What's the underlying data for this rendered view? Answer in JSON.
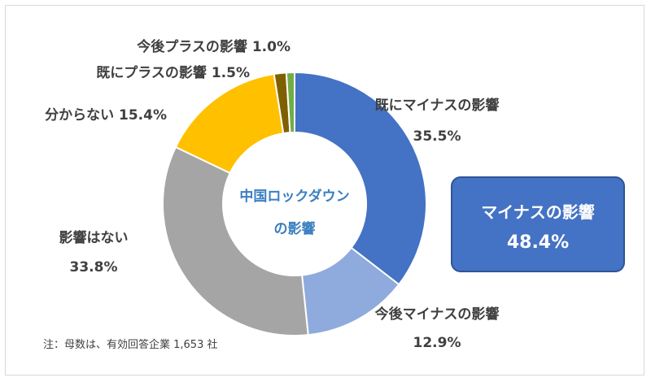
{
  "chart_data": {
    "type": "pie",
    "subtype": "donut",
    "center_label": [
      "中国ロックダウン",
      "の影響"
    ],
    "slices": [
      {
        "label": "既にマイナスの影響",
        "value": 35.5,
        "value_label": "35.5%",
        "color": "#4472c4"
      },
      {
        "label": "今後マイナスの影響",
        "value": 12.9,
        "value_label": "12.9%",
        "color": "#8faadc"
      },
      {
        "label": "影響はない",
        "value": 33.8,
        "value_label": "33.8%",
        "color": "#a5a5a5"
      },
      {
        "label": "分からない",
        "value": 15.4,
        "value_label": "15.4%",
        "color": "#ffc000"
      },
      {
        "label": "既にプラスの影響",
        "value": 1.5,
        "value_label": "1.5%",
        "color": "#7f6000"
      },
      {
        "label": "今後プラスの影響",
        "value": 1.0,
        "value_label": "1.0%",
        "color": "#70ad47"
      }
    ],
    "legend": "none"
  },
  "summary": {
    "title": "マイナスの影響",
    "value": "48.4%",
    "color": "#4472c4"
  },
  "note": "注：母数は、有効回答企業 1,653 社"
}
